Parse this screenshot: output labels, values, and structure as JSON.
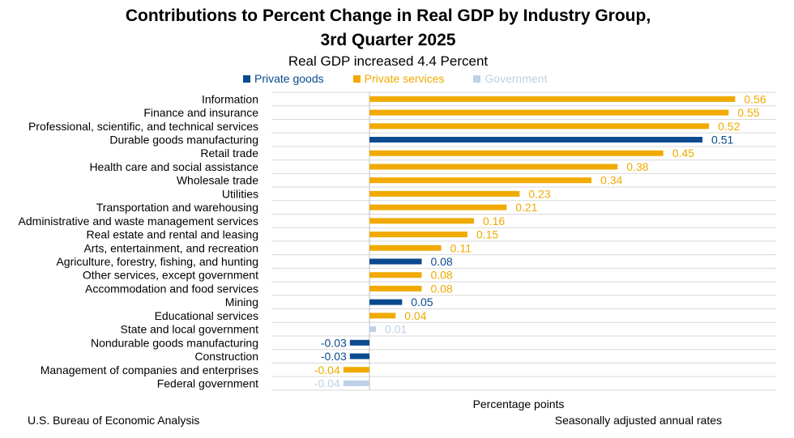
{
  "colors": {
    "private_goods": "#0b4a8f",
    "private_services": "#f0aa00",
    "government": "#bfd1e8",
    "grid": "#d9d9d9",
    "axis": "#bfbfbf"
  },
  "legend": [
    {
      "name": "Private goods",
      "color": "#0b4a8f"
    },
    {
      "name": "Private services",
      "color": "#f0aa00"
    },
    {
      "name": "Government",
      "color": "#bfd1e8"
    }
  ],
  "footer": {
    "source": "U.S. Bureau of Economic Analysis",
    "note": "Seasonally adjusted annual rates"
  },
  "chart_data": {
    "type": "bar",
    "orientation": "horizontal",
    "title_line1": "Contributions to Percent Change in Real GDP by Industry Group,",
    "title_line2": "3rd Quarter 2025",
    "subtitle": "Real GDP increased 4.4 Percent",
    "xlabel": "Percentage points",
    "ylabel": "",
    "xlim": [
      -0.06,
      0.56
    ],
    "grid": true,
    "legend_position": "top",
    "categories": [
      "Information",
      "Finance and insurance",
      "Professional, scientific, and technical services",
      "Durable goods manufacturing",
      "Retail trade",
      "Health care and social assistance",
      "Wholesale trade",
      "Utilities",
      "Transportation and warehousing",
      "Administrative and waste management services",
      "Real estate and rental and leasing",
      "Arts, entertainment, and recreation",
      "Agriculture, forestry, fishing, and hunting",
      "Other services, except government",
      "Accommodation and food services",
      "Mining",
      "Educational services",
      "State and local government",
      "Nondurable goods manufacturing",
      "Construction",
      "Management of companies and enterprises",
      "Federal government"
    ],
    "values": [
      0.56,
      0.55,
      0.52,
      0.51,
      0.45,
      0.38,
      0.34,
      0.23,
      0.21,
      0.16,
      0.15,
      0.11,
      0.08,
      0.08,
      0.08,
      0.05,
      0.04,
      0.01,
      -0.03,
      -0.03,
      -0.04,
      -0.04
    ],
    "labels": [
      "0.56",
      "0.55",
      "0.52",
      "0.51",
      "0.45",
      "0.38",
      "0.34",
      "0.23",
      "0.21",
      "0.16",
      "0.15",
      "0.11",
      "0.08",
      "0.08",
      "0.08",
      "0.05",
      "0.04",
      "0.01",
      "-0.03",
      "-0.03",
      "-0.04",
      "-0.04"
    ],
    "groups": [
      "Private services",
      "Private services",
      "Private services",
      "Private goods",
      "Private services",
      "Private services",
      "Private services",
      "Private services",
      "Private services",
      "Private services",
      "Private services",
      "Private services",
      "Private goods",
      "Private services",
      "Private services",
      "Private goods",
      "Private services",
      "Government",
      "Private goods",
      "Private goods",
      "Private services",
      "Government"
    ]
  }
}
